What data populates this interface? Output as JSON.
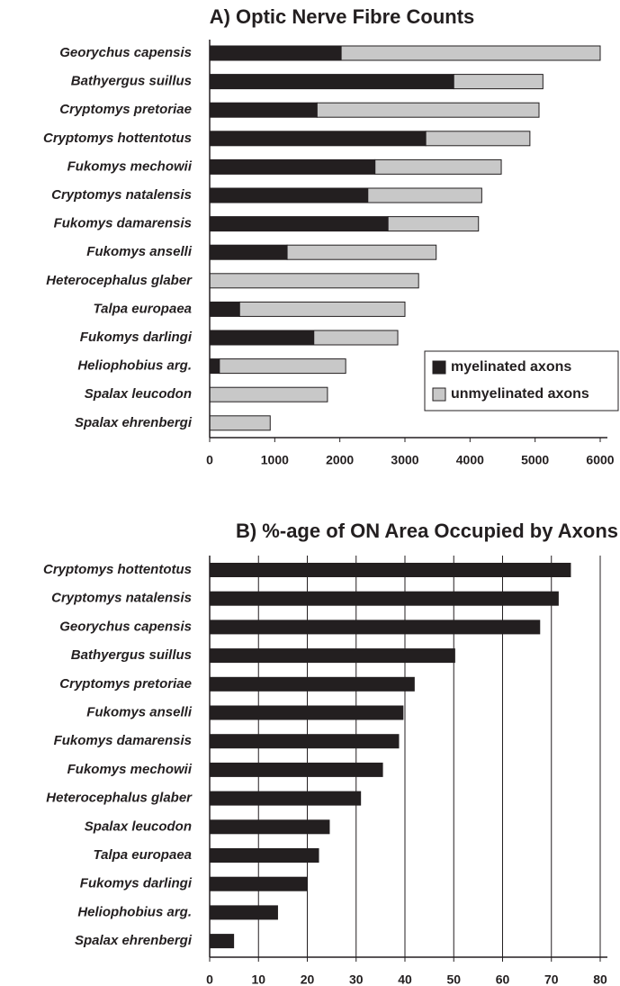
{
  "chart_data": [
    {
      "type": "stacked_bar",
      "title": "A) Optic Nerve Fibre Counts",
      "categories": [
        "Georychus capensis",
        "Bathyergus suillus",
        "Cryptomys pretoriae",
        "Cryptomys hottentotus",
        "Fukomys mechowii",
        "Cryptomys natalensis",
        "Fukomys damarensis",
        "Fukomys anselli",
        "Heterocephalus glaber",
        "Talpa europaea",
        "Fukomys darlingi",
        "Heliophobius arg.",
        "Spalax leucodon",
        "Spalax ehrenbergi"
      ],
      "series": [
        {
          "name": "myelinated axons",
          "color": "#231f20",
          "values": [
            2020,
            3750,
            1650,
            3320,
            2540,
            2430,
            2740,
            1190,
            0,
            460,
            1600,
            150,
            0,
            0
          ]
        },
        {
          "name": "unmyelinated axons",
          "color": "#c8c8c8",
          "values": [
            3980,
            1370,
            3410,
            1600,
            1940,
            1750,
            1390,
            2290,
            3210,
            2540,
            1290,
            1940,
            1810,
            930
          ]
        }
      ],
      "xlim": [
        0,
        6000
      ],
      "xticks": [
        0,
        1000,
        2000,
        3000,
        4000,
        5000,
        6000
      ],
      "grid": false,
      "legend": "lower right"
    },
    {
      "type": "bar",
      "title": "B) %-age of ON Area Occupied by Axons",
      "categories": [
        "Cryptomys hottentotus",
        "Cryptomys natalensis",
        "Georychus capensis",
        "Bathyergus suillus",
        "Cryptomys pretoriae",
        "Fukomys anselli",
        "Fukomys damarensis",
        "Fukomys mechowii",
        "Heterocephalus glaber",
        "Spalax leucodon",
        "Talpa europaea",
        "Fukomys darlingi",
        "Heliophobius arg.",
        "Spalax ehrenbergi"
      ],
      "values": [
        74,
        71.5,
        67.7,
        50.3,
        42,
        39.7,
        38.8,
        35.5,
        31,
        24.6,
        22.4,
        20.1,
        14,
        5
      ],
      "color": "#231f20",
      "xlim": [
        0,
        80
      ],
      "xticks": [
        0,
        10,
        20,
        30,
        40,
        50,
        60,
        70,
        80
      ],
      "grid": true
    }
  ]
}
